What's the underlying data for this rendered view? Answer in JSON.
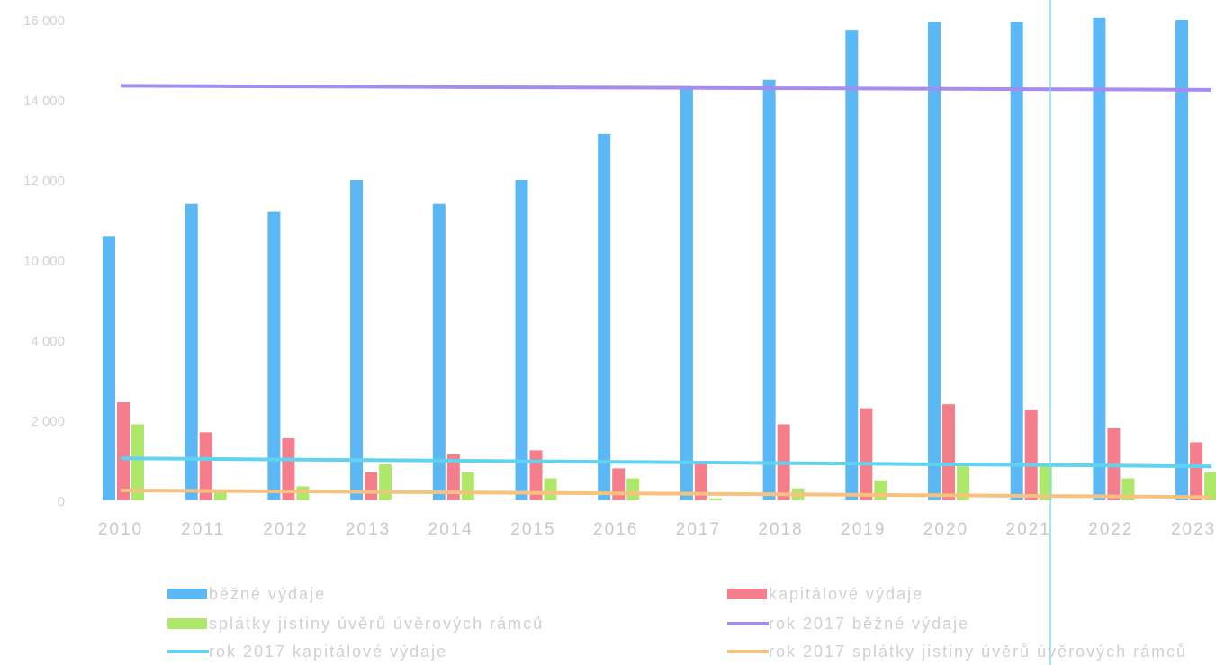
{
  "chart_data": {
    "type": "bar",
    "categories": [
      "2010",
      "2011",
      "2012",
      "2013",
      "2014",
      "2015",
      "2016",
      "2017",
      "2018",
      "2019",
      "2020",
      "2021",
      "2022",
      "2023"
    ],
    "y_ticks": [
      {
        "label": "0",
        "value": 0
      },
      {
        "label": "2 000",
        "value": 2000
      },
      {
        "label": "4 000",
        "value": 4000
      },
      {
        "label": "10 000",
        "value": 10000
      },
      {
        "label": "12 000",
        "value": 12000
      },
      {
        "label": "14 000",
        "value": 14000
      },
      {
        "label": "16 000",
        "value": 16000
      }
    ],
    "series": [
      {
        "name": "běžné výdaje",
        "kind": "bar",
        "color": "#5cb8f5",
        "values": [
          10600,
          11400,
          11200,
          12000,
          11400,
          12000,
          13150,
          14300,
          14500,
          15750,
          15950,
          15950,
          16050,
          16000
        ]
      },
      {
        "name": "kapitálové výdaje",
        "kind": "bar",
        "color": "#f47e8c",
        "values": [
          2450,
          1700,
          1550,
          700,
          1150,
          1250,
          800,
          950,
          1900,
          2300,
          2400,
          2250,
          1800,
          1450
        ]
      },
      {
        "name": "splátky jistiny úvěrů úvěrových rámců",
        "kind": "bar",
        "color": "#aee86a",
        "values": [
          1900,
          250,
          350,
          900,
          700,
          550,
          550,
          50,
          300,
          500,
          850,
          850,
          550,
          700
        ]
      },
      {
        "name": "rok 2017 běžné výdaje",
        "kind": "line",
        "color": "#a48cf0",
        "values": [
          14350,
          14343,
          14335,
          14328,
          14320,
          14313,
          14305,
          14298,
          14290,
          14283,
          14275,
          14268,
          14260,
          14250
        ]
      },
      {
        "name": "rok 2017 kapitálové výdaje",
        "kind": "line",
        "color": "#5fd3f0",
        "values": [
          1050,
          1035,
          1020,
          1005,
          990,
          975,
          960,
          945,
          930,
          915,
          900,
          885,
          870,
          850
        ]
      },
      {
        "name": "rok 2017 splátky jistiny úvěrů úvěrových rámců",
        "kind": "line",
        "color": "#f7c27e",
        "values": [
          250,
          237,
          225,
          212,
          200,
          188,
          175,
          163,
          150,
          138,
          125,
          113,
          100,
          80
        ]
      }
    ],
    "legend_position": "bottom",
    "grid": false
  }
}
